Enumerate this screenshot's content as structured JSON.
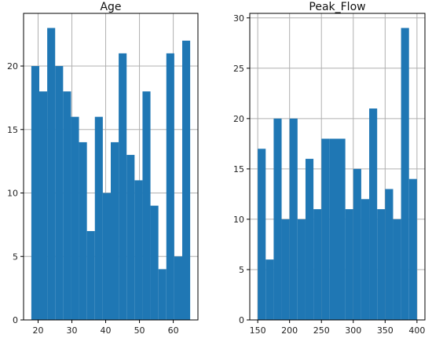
{
  "chart_data": [
    {
      "type": "bar",
      "title": "Age",
      "xlabel": "",
      "ylabel": "",
      "grid": true,
      "color": "#1f77b4",
      "xlim": [
        15.7,
        67.3
      ],
      "ylim": [
        0,
        24.15
      ],
      "xticks": [
        20,
        30,
        40,
        50,
        60
      ],
      "yticks": [
        0,
        5,
        10,
        15,
        20
      ],
      "bins": [
        {
          "x0": 18.0,
          "x1": 20.35,
          "count": 20
        },
        {
          "x0": 20.35,
          "x1": 22.7,
          "count": 18
        },
        {
          "x0": 22.7,
          "x1": 25.05,
          "count": 23
        },
        {
          "x0": 25.05,
          "x1": 27.4,
          "count": 20
        },
        {
          "x0": 27.4,
          "x1": 29.75,
          "count": 18
        },
        {
          "x0": 29.75,
          "x1": 32.1,
          "count": 16
        },
        {
          "x0": 32.1,
          "x1": 34.45,
          "count": 14
        },
        {
          "x0": 34.45,
          "x1": 36.8,
          "count": 7
        },
        {
          "x0": 36.8,
          "x1": 39.15,
          "count": 16
        },
        {
          "x0": 39.15,
          "x1": 41.5,
          "count": 10
        },
        {
          "x0": 41.5,
          "x1": 43.85,
          "count": 14
        },
        {
          "x0": 43.85,
          "x1": 46.2,
          "count": 21
        },
        {
          "x0": 46.2,
          "x1": 48.55,
          "count": 13
        },
        {
          "x0": 48.55,
          "x1": 50.9,
          "count": 11
        },
        {
          "x0": 50.9,
          "x1": 53.25,
          "count": 18
        },
        {
          "x0": 53.25,
          "x1": 55.6,
          "count": 9
        },
        {
          "x0": 55.6,
          "x1": 57.95,
          "count": 4
        },
        {
          "x0": 57.95,
          "x1": 60.3,
          "count": 21
        },
        {
          "x0": 60.3,
          "x1": 62.65,
          "count": 5
        },
        {
          "x0": 62.65,
          "x1": 65.0,
          "count": 22
        }
      ]
    },
    {
      "type": "bar",
      "title": "Peak_Flow",
      "xlabel": "",
      "ylabel": "",
      "grid": true,
      "color": "#1f77b4",
      "xlim": [
        137.5,
        412.5
      ],
      "ylim": [
        0,
        30.45
      ],
      "xticks": [
        150,
        200,
        250,
        300,
        350,
        400
      ],
      "yticks": [
        0,
        5,
        10,
        15,
        20,
        25,
        30
      ],
      "bins": [
        {
          "x0": 150.0,
          "x1": 162.5,
          "count": 17
        },
        {
          "x0": 162.5,
          "x1": 175.0,
          "count": 6
        },
        {
          "x0": 175.0,
          "x1": 187.5,
          "count": 20
        },
        {
          "x0": 187.5,
          "x1": 200.0,
          "count": 10
        },
        {
          "x0": 200.0,
          "x1": 212.5,
          "count": 20
        },
        {
          "x0": 212.5,
          "x1": 225.0,
          "count": 10
        },
        {
          "x0": 225.0,
          "x1": 237.5,
          "count": 16
        },
        {
          "x0": 237.5,
          "x1": 250.0,
          "count": 11
        },
        {
          "x0": 250.0,
          "x1": 262.5,
          "count": 18
        },
        {
          "x0": 262.5,
          "x1": 275.0,
          "count": 18
        },
        {
          "x0": 275.0,
          "x1": 287.5,
          "count": 18
        },
        {
          "x0": 287.5,
          "x1": 300.0,
          "count": 11
        },
        {
          "x0": 300.0,
          "x1": 312.5,
          "count": 15
        },
        {
          "x0": 312.5,
          "x1": 325.0,
          "count": 12
        },
        {
          "x0": 325.0,
          "x1": 337.5,
          "count": 21
        },
        {
          "x0": 337.5,
          "x1": 350.0,
          "count": 11
        },
        {
          "x0": 350.0,
          "x1": 362.5,
          "count": 13
        },
        {
          "x0": 362.5,
          "x1": 375.0,
          "count": 10
        },
        {
          "x0": 375.0,
          "x1": 387.5,
          "count": 29
        },
        {
          "x0": 387.5,
          "x1": 400.0,
          "count": 14
        }
      ]
    }
  ]
}
